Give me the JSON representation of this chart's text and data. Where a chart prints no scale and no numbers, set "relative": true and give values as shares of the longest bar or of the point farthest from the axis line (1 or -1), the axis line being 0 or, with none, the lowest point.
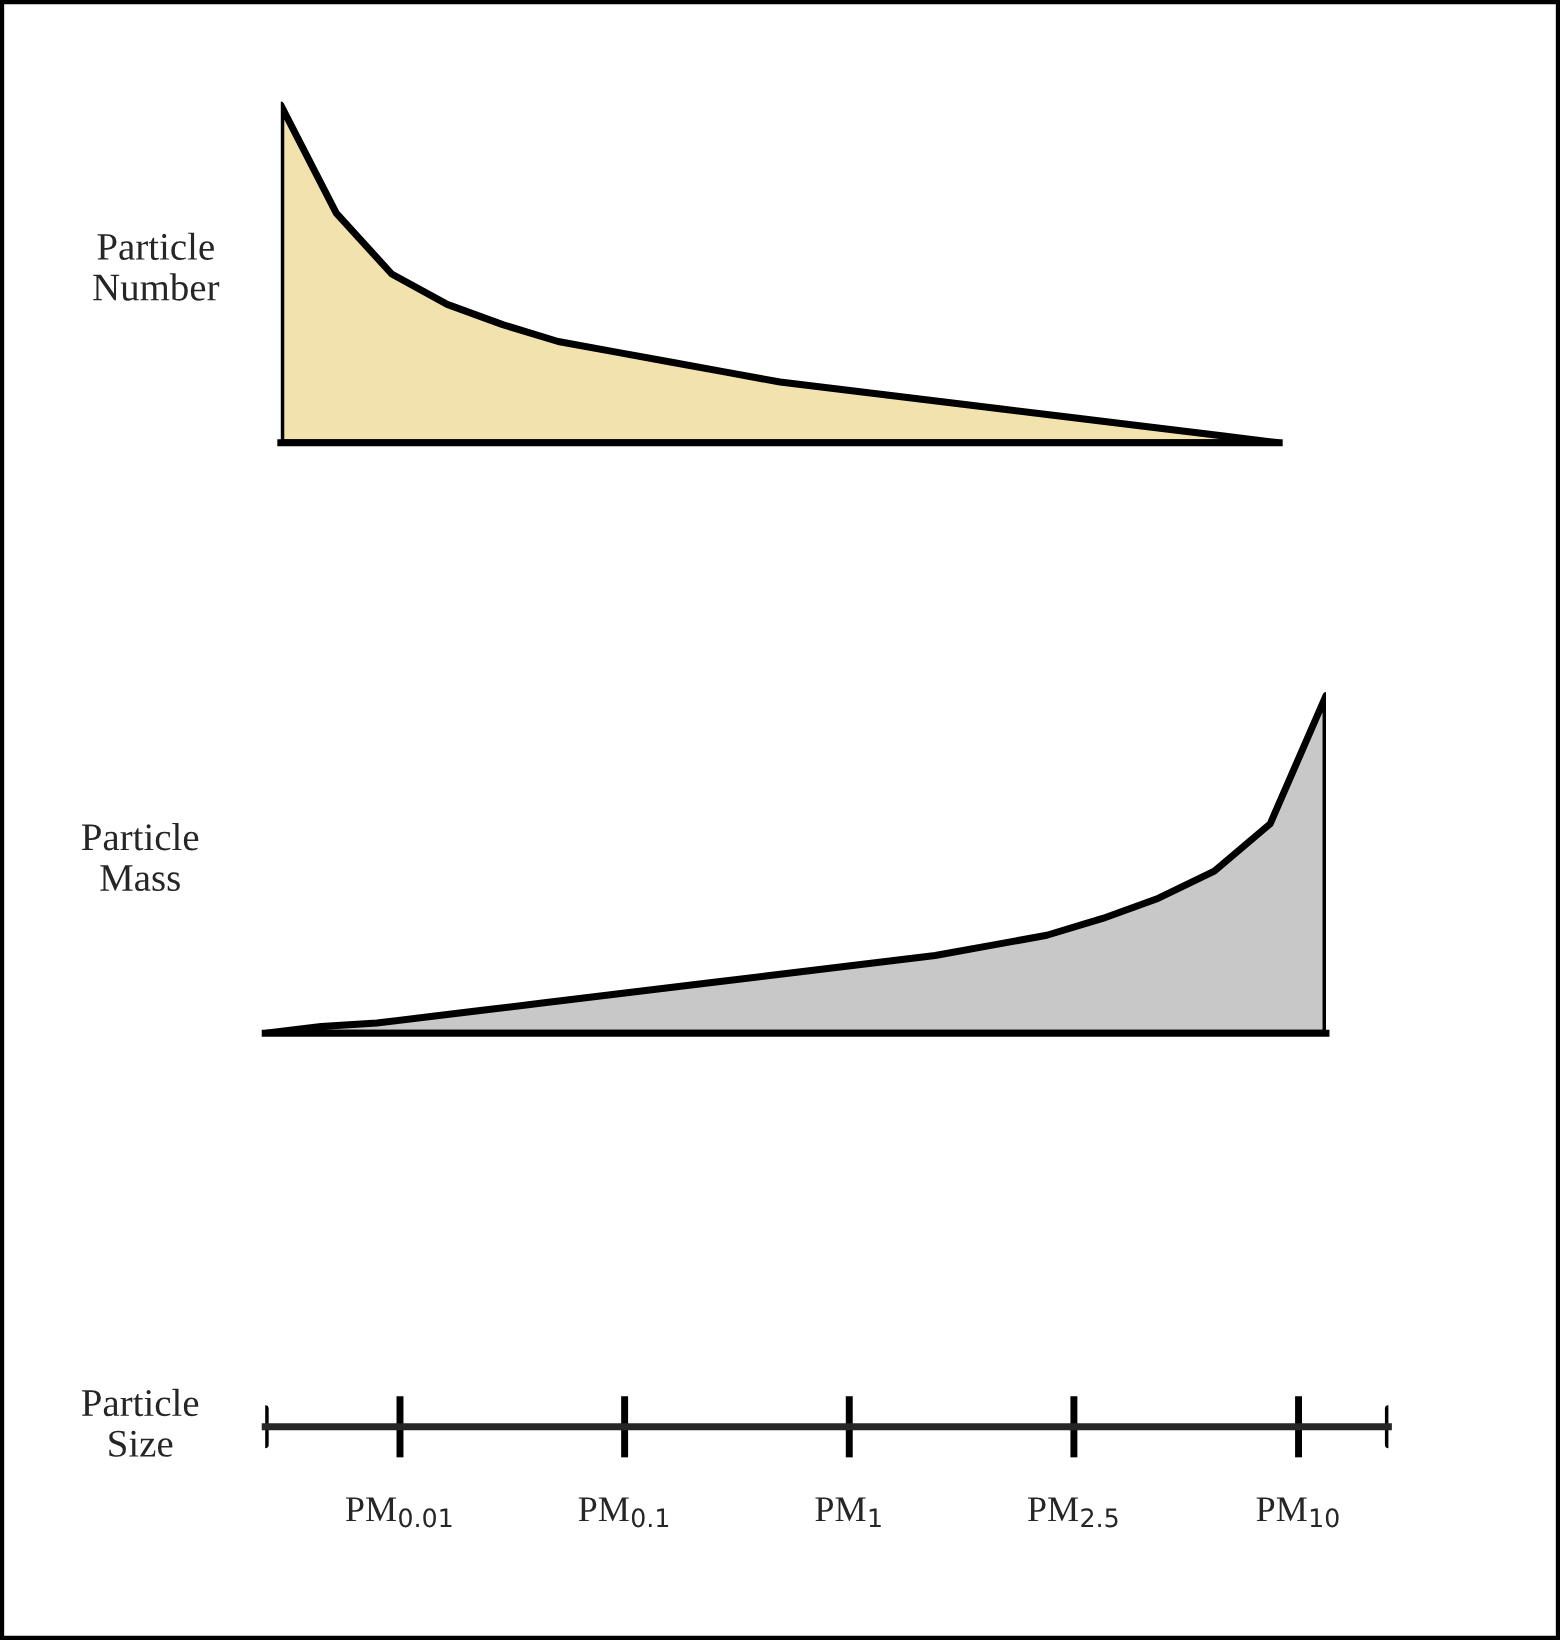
{
  "chart_data": [
    {
      "type": "area",
      "ylabel": "Particle\nNumber",
      "relative": true,
      "categories": [
        null,
        null,
        null,
        null,
        null,
        null,
        null,
        null,
        null,
        null,
        null,
        null,
        null,
        null,
        null,
        null,
        null,
        null,
        null
      ],
      "series": [
        {
          "color": "#f2e3ae",
          "values": [
            1.0,
            0.68,
            0.5,
            0.41,
            0.35,
            0.3,
            0.27,
            0.24,
            0.21,
            0.18,
            0.16,
            0.14,
            0.12,
            0.1,
            0.08,
            0.06,
            0.04,
            0.02,
            0.0
          ]
        }
      ]
    },
    {
      "type": "area",
      "ylabel": "Particle\nMass",
      "relative": true,
      "categories": [
        null,
        null,
        null,
        null,
        null,
        null,
        null,
        null,
        null,
        null,
        null,
        null,
        null,
        null,
        null,
        null,
        null,
        null,
        null,
        null
      ],
      "series": [
        {
          "color": "#c8c8c8",
          "values": [
            0.0,
            0.02,
            0.03,
            0.05,
            0.07,
            0.09,
            0.11,
            0.13,
            0.15,
            0.17,
            0.19,
            0.21,
            0.23,
            0.26,
            0.29,
            0.34,
            0.4,
            0.48,
            0.62,
            1.0
          ]
        }
      ]
    },
    {
      "type": "other",
      "ylabel": "Particle\nSize",
      "categories": [
        "PM$_{0.01}$",
        "PM$_{0.1}$",
        "PM$_{1}$",
        "PM$_{2.5}$",
        "PM$_{10}$"
      ]
    }
  ]
}
